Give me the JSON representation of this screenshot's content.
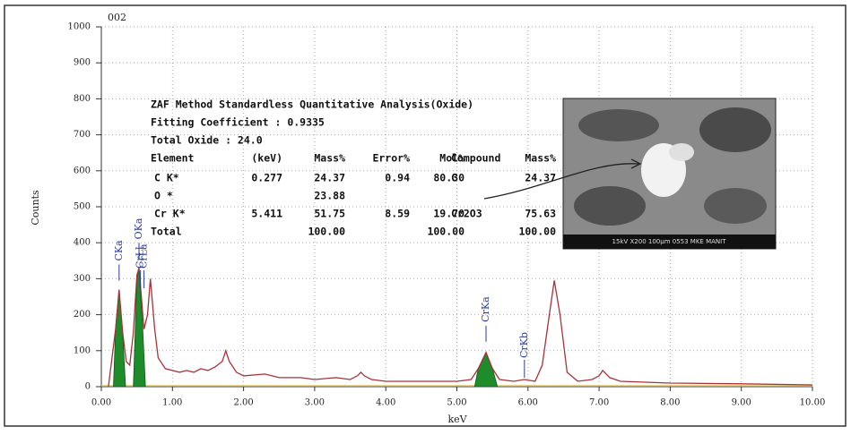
{
  "chart_data": {
    "type": "line",
    "title": "002",
    "xlabel": "keV",
    "ylabel": "Counts",
    "xlim": [
      0,
      10
    ],
    "ylim": [
      0,
      1000
    ],
    "xticks": [
      {
        "value": 0,
        "label": "0.00"
      },
      {
        "value": 1,
        "label": "1.00"
      },
      {
        "value": 2,
        "label": "2.00"
      },
      {
        "value": 3,
        "label": "3.00"
      },
      {
        "value": 4,
        "label": "4.00"
      },
      {
        "value": 5,
        "label": "5.00"
      },
      {
        "value": 6,
        "label": "6.00"
      },
      {
        "value": 7,
        "label": "7.00"
      },
      {
        "value": 8,
        "label": "8.00"
      },
      {
        "value": 9,
        "label": "9.00"
      },
      {
        "value": 10,
        "label": "10.00"
      }
    ],
    "yticks": [
      0,
      100,
      200,
      300,
      400,
      500,
      600,
      700,
      800,
      900,
      1000
    ],
    "grid": true,
    "series": [
      {
        "color": "#a8323a",
        "x": [
          0.1,
          0.15,
          0.2,
          0.25,
          0.3,
          0.35,
          0.4,
          0.45,
          0.5,
          0.53,
          0.6,
          0.65,
          0.69,
          0.75,
          0.8,
          0.9,
          1.0,
          1.1,
          1.2,
          1.3,
          1.4,
          1.5,
          1.6,
          1.7,
          1.75,
          1.8,
          1.9,
          2.0,
          2.3,
          2.5,
          2.8,
          3.0,
          3.3,
          3.5,
          3.6,
          3.65,
          3.7,
          3.8,
          4.0,
          4.5,
          5.0,
          5.2,
          5.3,
          5.41,
          5.5,
          5.6,
          5.8,
          5.95,
          6.1,
          6.2,
          6.3,
          6.37,
          6.45,
          6.55,
          6.7,
          6.9,
          7.0,
          7.05,
          7.15,
          7.3,
          8.0,
          9.0,
          10.0
        ],
        "values": [
          0,
          80,
          160,
          270,
          150,
          70,
          60,
          150,
          310,
          330,
          160,
          200,
          300,
          160,
          80,
          50,
          45,
          40,
          45,
          40,
          50,
          45,
          55,
          70,
          100,
          70,
          40,
          30,
          35,
          25,
          25,
          20,
          25,
          20,
          30,
          40,
          30,
          20,
          15,
          15,
          15,
          20,
          50,
          95,
          50,
          20,
          15,
          20,
          15,
          60,
          200,
          295,
          200,
          40,
          15,
          20,
          30,
          45,
          25,
          15,
          10,
          8,
          5
        ]
      },
      {
        "type": "area",
        "name": "CKa",
        "color": "#1e8c2a",
        "x": [
          0.17,
          0.2,
          0.25,
          0.3,
          0.34
        ],
        "values": [
          0,
          160,
          265,
          150,
          0
        ]
      },
      {
        "type": "area",
        "name": "OKa",
        "color": "#1e8c2a",
        "x": [
          0.45,
          0.5,
          0.53,
          0.58,
          0.62
        ],
        "values": [
          0,
          300,
          325,
          170,
          0
        ]
      },
      {
        "type": "area",
        "name": "CrKa",
        "color": "#1e8c2a",
        "x": [
          5.25,
          5.3,
          5.41,
          5.5,
          5.57
        ],
        "values": [
          0,
          50,
          95,
          50,
          0
        ]
      }
    ],
    "peak_labels": [
      {
        "text": "CrLl",
        "x": 0.55
      },
      {
        "text": "CrLa",
        "x": 0.6
      },
      {
        "text": "CrKb",
        "x": 5.95
      }
    ]
  },
  "analysis": {
    "title": "ZAF Method Standardless Quantitative Analysis(Oxide)",
    "fitting": "Fitting Coefficient : 0.9335",
    "total_oxide": "Total Oxide : 24.0",
    "columns": [
      "Element",
      "(keV)",
      "Mass%",
      "Error%",
      "Mol%",
      "Compound",
      "Mass%"
    ],
    "rows": [
      [
        "C K*",
        "0.277",
        "24.37",
        "0.94",
        "80.30",
        "C",
        "24.37"
      ],
      [
        "O *",
        null,
        "23.88",
        null,
        null,
        null,
        null
      ],
      [
        "Cr K*",
        "5.411",
        "51.75",
        "8.59",
        "19.70",
        "Cr2O3",
        "75.63"
      ],
      [
        "Total",
        null,
        "100.00",
        null,
        "100.00",
        null,
        "100.00"
      ]
    ]
  },
  "inset": {
    "caption": "15kV   X200   100µm   0553   MKE MANIT"
  }
}
